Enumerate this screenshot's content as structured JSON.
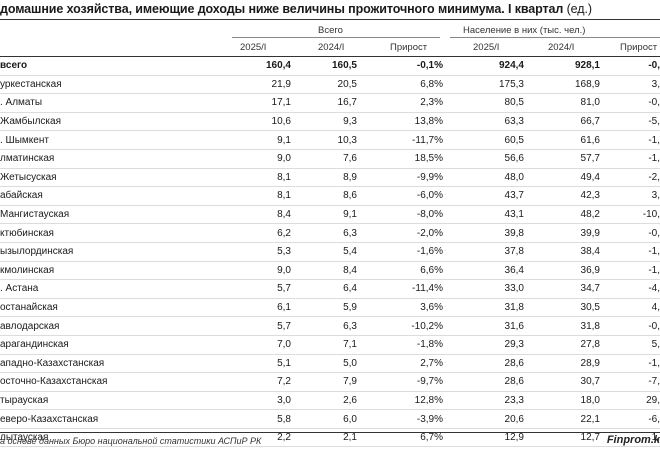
{
  "title": {
    "bold": "домашние хозяйства, имеющие доходы ниже величины прожиточного минимума. I квартал",
    "rest": " (ед.)"
  },
  "groups": {
    "all": "Всего",
    "population": "Население в них (тыс. чел.)"
  },
  "columns": [
    "2025/I",
    "2024/I",
    "Прирост",
    "2025/I",
    "2024/I",
    "Прирост"
  ],
  "rows": [
    {
      "name": "всего",
      "v": [
        "160,4",
        "160,5",
        "-0,1%",
        "924,4",
        "928,1",
        "-0,"
      ]
    },
    {
      "name": "уркестанская",
      "v": [
        "21,9",
        "20,5",
        "6,8%",
        "175,3",
        "168,9",
        "3,"
      ]
    },
    {
      "name": ". Алматы",
      "v": [
        "17,1",
        "16,7",
        "2,3%",
        "80,5",
        "81,0",
        "-0,"
      ]
    },
    {
      "name": "Жамбылская",
      "v": [
        "10,6",
        "9,3",
        "13,8%",
        "63,3",
        "66,7",
        "-5,"
      ]
    },
    {
      "name": ". Шымкент",
      "v": [
        "9,1",
        "10,3",
        "-11,7%",
        "60,5",
        "61,6",
        "-1,"
      ]
    },
    {
      "name": "лматинская",
      "v": [
        "9,0",
        "7,6",
        "18,5%",
        "56,6",
        "57,7",
        "-1,"
      ]
    },
    {
      "name": "Жетысуская",
      "v": [
        "8,1",
        "8,9",
        "-9,9%",
        "48,0",
        "49,4",
        "-2,"
      ]
    },
    {
      "name": "абайская",
      "v": [
        "8,1",
        "8,6",
        "-6,0%",
        "43,7",
        "42,3",
        "3,"
      ]
    },
    {
      "name": "Мангистауская",
      "v": [
        "8,4",
        "9,1",
        "-8,0%",
        "43,1",
        "48,2",
        "-10,"
      ]
    },
    {
      "name": "ктюбинская",
      "v": [
        "6,2",
        "6,3",
        "-2,0%",
        "39,8",
        "39,9",
        "-0,"
      ]
    },
    {
      "name": "ызылординская",
      "v": [
        "5,3",
        "5,4",
        "-1,6%",
        "37,8",
        "38,4",
        "-1,"
      ]
    },
    {
      "name": "кмолинская",
      "v": [
        "9,0",
        "8,4",
        "6,6%",
        "36,4",
        "36,9",
        "-1,"
      ]
    },
    {
      "name": ". Астана",
      "v": [
        "5,7",
        "6,4",
        "-11,4%",
        "33,0",
        "34,7",
        "-4,"
      ]
    },
    {
      "name": "останайская",
      "v": [
        "6,1",
        "5,9",
        "3,6%",
        "31,8",
        "30,5",
        "4,"
      ]
    },
    {
      "name": "авлодарская",
      "v": [
        "5,7",
        "6,3",
        "-10,2%",
        "31,6",
        "31,8",
        "-0,"
      ]
    },
    {
      "name": "арагандинская",
      "v": [
        "7,0",
        "7,1",
        "-1,8%",
        "29,3",
        "27,8",
        "5,"
      ]
    },
    {
      "name": "ападно-Казахстанская",
      "v": [
        "5,1",
        "5,0",
        "2,7%",
        "28,6",
        "28,9",
        "-1,"
      ]
    },
    {
      "name": "осточно-Казахстанская",
      "v": [
        "7,2",
        "7,9",
        "-9,7%",
        "28,6",
        "30,7",
        "-7,"
      ]
    },
    {
      "name": "тырауская",
      "v": [
        "3,0",
        "2,6",
        "12,8%",
        "23,3",
        "18,0",
        "29,"
      ]
    },
    {
      "name": "еверо-Казахстанская",
      "v": [
        "5,8",
        "6,0",
        "-3,9%",
        "20,6",
        "22,1",
        "-6,"
      ]
    },
    {
      "name": "лытауская",
      "v": [
        "2,2",
        "2,1",
        "6,7%",
        "12,9",
        "12,7",
        "1,"
      ]
    }
  ],
  "footer": {
    "source": "а основе данных Бюро национальной статистики АСПиР РК",
    "brand": "Finprom.k"
  }
}
